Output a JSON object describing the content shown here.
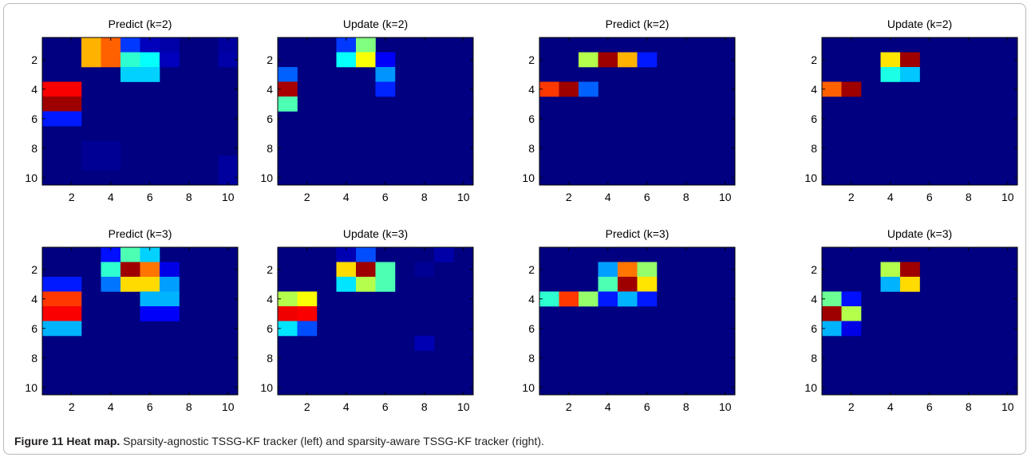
{
  "figure": {
    "caption_label": "Figure 11 Heat map.",
    "caption_text": "Sparsity-agnostic TSSG-KF tracker (left) and sparsity-aware TSSG-KF tracker (right)."
  },
  "chart_data": [
    {
      "type": "heatmap",
      "title": "Predict (k=2)",
      "x_ticks": [
        "2",
        "4",
        "6",
        "8",
        "10"
      ],
      "y_ticks": [
        "2",
        "4",
        "6",
        "8",
        "10"
      ],
      "xlim": [
        0.5,
        10.5
      ],
      "ylim": [
        0.5,
        10.5
      ],
      "colormap": "jet",
      "y_reversed": true,
      "cells": [
        {
          "x": 3,
          "y": 1,
          "v": 0.7
        },
        {
          "x": 4,
          "y": 1,
          "v": 0.78
        },
        {
          "x": 5,
          "y": 1,
          "v": 0.18
        },
        {
          "x": 6,
          "y": 1,
          "v": 0.06
        },
        {
          "x": 7,
          "y": 1,
          "v": 0.04
        },
        {
          "x": 10,
          "y": 1,
          "v": 0.03
        },
        {
          "x": 3,
          "y": 2,
          "v": 0.7
        },
        {
          "x": 4,
          "y": 2,
          "v": 0.78
        },
        {
          "x": 5,
          "y": 2,
          "v": 0.42
        },
        {
          "x": 6,
          "y": 2,
          "v": 0.38
        },
        {
          "x": 7,
          "y": 2,
          "v": 0.06
        },
        {
          "x": 10,
          "y": 2,
          "v": 0.04
        },
        {
          "x": 5,
          "y": 3,
          "v": 0.33
        },
        {
          "x": 6,
          "y": 3,
          "v": 0.33
        },
        {
          "x": 1,
          "y": 4,
          "v": 0.88
        },
        {
          "x": 2,
          "y": 4,
          "v": 0.88
        },
        {
          "x": 1,
          "y": 5,
          "v": 0.97
        },
        {
          "x": 2,
          "y": 5,
          "v": 0.97
        },
        {
          "x": 1,
          "y": 6,
          "v": 0.15
        },
        {
          "x": 2,
          "y": 6,
          "v": 0.15
        },
        {
          "x": 3,
          "y": 8,
          "v": 0.02
        },
        {
          "x": 4,
          "y": 8,
          "v": 0.02
        },
        {
          "x": 3,
          "y": 9,
          "v": 0.02
        },
        {
          "x": 4,
          "y": 9,
          "v": 0.02
        },
        {
          "x": 10,
          "y": 9,
          "v": 0.03
        },
        {
          "x": 10,
          "y": 10,
          "v": 0.03
        }
      ]
    },
    {
      "type": "heatmap",
      "title": "Update (k=2)",
      "x_ticks": [
        "2",
        "4",
        "6",
        "8",
        "10"
      ],
      "y_ticks": [
        "2",
        "4",
        "6",
        "8",
        "10"
      ],
      "xlim": [
        0.5,
        10.5
      ],
      "ylim": [
        0.5,
        10.5
      ],
      "colormap": "jet",
      "y_reversed": true,
      "cells": [
        {
          "x": 4,
          "y": 1,
          "v": 0.18
        },
        {
          "x": 5,
          "y": 1,
          "v": 0.5
        },
        {
          "x": 4,
          "y": 2,
          "v": 0.38
        },
        {
          "x": 5,
          "y": 2,
          "v": 0.62
        },
        {
          "x": 6,
          "y": 2,
          "v": 0.12
        },
        {
          "x": 1,
          "y": 3,
          "v": 0.22
        },
        {
          "x": 6,
          "y": 3,
          "v": 0.27
        },
        {
          "x": 1,
          "y": 4,
          "v": 0.96
        },
        {
          "x": 6,
          "y": 4,
          "v": 0.16
        },
        {
          "x": 1,
          "y": 5,
          "v": 0.45
        }
      ]
    },
    {
      "type": "heatmap",
      "title": "Predict (k=2)",
      "x_ticks": [
        "2",
        "4",
        "6",
        "8",
        "10"
      ],
      "y_ticks": [
        "2",
        "4",
        "6",
        "8",
        "10"
      ],
      "xlim": [
        0.5,
        10.5
      ],
      "ylim": [
        0.5,
        10.5
      ],
      "colormap": "jet",
      "y_reversed": true,
      "cells": [
        {
          "x": 3,
          "y": 2,
          "v": 0.55
        },
        {
          "x": 4,
          "y": 2,
          "v": 0.97
        },
        {
          "x": 5,
          "y": 2,
          "v": 0.7
        },
        {
          "x": 6,
          "y": 2,
          "v": 0.15
        },
        {
          "x": 1,
          "y": 4,
          "v": 0.82
        },
        {
          "x": 2,
          "y": 4,
          "v": 0.97
        },
        {
          "x": 3,
          "y": 4,
          "v": 0.22
        }
      ]
    },
    {
      "type": "heatmap",
      "title": "Update (k=2)",
      "x_ticks": [
        "2",
        "4",
        "6",
        "8",
        "10"
      ],
      "y_ticks": [
        "2",
        "4",
        "6",
        "8",
        "10"
      ],
      "xlim": [
        0.5,
        10.5
      ],
      "ylim": [
        0.5,
        10.5
      ],
      "colormap": "jet",
      "y_reversed": true,
      "cells": [
        {
          "x": 4,
          "y": 2,
          "v": 0.65
        },
        {
          "x": 5,
          "y": 2,
          "v": 0.97
        },
        {
          "x": 4,
          "y": 3,
          "v": 0.4
        },
        {
          "x": 5,
          "y": 3,
          "v": 0.32
        },
        {
          "x": 1,
          "y": 4,
          "v": 0.78
        },
        {
          "x": 2,
          "y": 4,
          "v": 0.97
        }
      ]
    },
    {
      "type": "heatmap",
      "title": "Predict (k=3)",
      "x_ticks": [
        "2",
        "4",
        "6",
        "8",
        "10"
      ],
      "y_ticks": [
        "2",
        "4",
        "6",
        "8",
        "10"
      ],
      "xlim": [
        0.5,
        10.5
      ],
      "ylim": [
        0.5,
        10.5
      ],
      "colormap": "jet",
      "y_reversed": true,
      "cells": [
        {
          "x": 4,
          "y": 1,
          "v": 0.14
        },
        {
          "x": 5,
          "y": 1,
          "v": 0.45
        },
        {
          "x": 6,
          "y": 1,
          "v": 0.33
        },
        {
          "x": 4,
          "y": 2,
          "v": 0.42
        },
        {
          "x": 5,
          "y": 2,
          "v": 0.97
        },
        {
          "x": 6,
          "y": 2,
          "v": 0.76
        },
        {
          "x": 7,
          "y": 2,
          "v": 0.1
        },
        {
          "x": 1,
          "y": 3,
          "v": 0.15
        },
        {
          "x": 2,
          "y": 3,
          "v": 0.15
        },
        {
          "x": 4,
          "y": 3,
          "v": 0.24
        },
        {
          "x": 5,
          "y": 3,
          "v": 0.66
        },
        {
          "x": 6,
          "y": 3,
          "v": 0.66
        },
        {
          "x": 7,
          "y": 3,
          "v": 0.28
        },
        {
          "x": 1,
          "y": 4,
          "v": 0.82
        },
        {
          "x": 2,
          "y": 4,
          "v": 0.82
        },
        {
          "x": 6,
          "y": 4,
          "v": 0.3
        },
        {
          "x": 7,
          "y": 4,
          "v": 0.3
        },
        {
          "x": 1,
          "y": 5,
          "v": 0.88
        },
        {
          "x": 2,
          "y": 5,
          "v": 0.88
        },
        {
          "x": 6,
          "y": 5,
          "v": 0.12
        },
        {
          "x": 7,
          "y": 5,
          "v": 0.12
        },
        {
          "x": 1,
          "y": 6,
          "v": 0.3
        },
        {
          "x": 2,
          "y": 6,
          "v": 0.3
        }
      ]
    },
    {
      "type": "heatmap",
      "title": "Update (k=3)",
      "x_ticks": [
        "2",
        "4",
        "6",
        "8",
        "10"
      ],
      "y_ticks": [
        "2",
        "4",
        "6",
        "8",
        "10"
      ],
      "xlim": [
        0.5,
        10.5
      ],
      "ylim": [
        0.5,
        10.5
      ],
      "colormap": "jet",
      "y_reversed": true,
      "cells": [
        {
          "x": 4,
          "y": 1,
          "v": 0.05
        },
        {
          "x": 5,
          "y": 1,
          "v": 0.2
        },
        {
          "x": 9,
          "y": 1,
          "v": 0.04
        },
        {
          "x": 4,
          "y": 2,
          "v": 0.66
        },
        {
          "x": 5,
          "y": 2,
          "v": 0.97
        },
        {
          "x": 6,
          "y": 2,
          "v": 0.45
        },
        {
          "x": 8,
          "y": 2,
          "v": 0.02
        },
        {
          "x": 4,
          "y": 3,
          "v": 0.35
        },
        {
          "x": 5,
          "y": 3,
          "v": 0.55
        },
        {
          "x": 6,
          "y": 3,
          "v": 0.45
        },
        {
          "x": 1,
          "y": 4,
          "v": 0.55
        },
        {
          "x": 2,
          "y": 4,
          "v": 0.62
        },
        {
          "x": 1,
          "y": 5,
          "v": 0.89
        },
        {
          "x": 2,
          "y": 5,
          "v": 0.88
        },
        {
          "x": 1,
          "y": 6,
          "v": 0.35
        },
        {
          "x": 2,
          "y": 6,
          "v": 0.2
        },
        {
          "x": 8,
          "y": 7,
          "v": 0.05
        }
      ]
    },
    {
      "type": "heatmap",
      "title": "Predict (k=3)",
      "x_ticks": [
        "2",
        "4",
        "6",
        "8",
        "10"
      ],
      "y_ticks": [
        "2",
        "4",
        "6",
        "8",
        "10"
      ],
      "xlim": [
        0.5,
        10.5
      ],
      "ylim": [
        0.5,
        10.5
      ],
      "colormap": "jet",
      "y_reversed": true,
      "cells": [
        {
          "x": 4,
          "y": 2,
          "v": 0.28
        },
        {
          "x": 5,
          "y": 2,
          "v": 0.76
        },
        {
          "x": 6,
          "y": 2,
          "v": 0.52
        },
        {
          "x": 4,
          "y": 3,
          "v": 0.45
        },
        {
          "x": 5,
          "y": 3,
          "v": 0.97
        },
        {
          "x": 6,
          "y": 3,
          "v": 0.65
        },
        {
          "x": 1,
          "y": 4,
          "v": 0.42
        },
        {
          "x": 2,
          "y": 4,
          "v": 0.82
        },
        {
          "x": 3,
          "y": 4,
          "v": 0.52
        },
        {
          "x": 4,
          "y": 4,
          "v": 0.15
        },
        {
          "x": 5,
          "y": 4,
          "v": 0.3
        },
        {
          "x": 6,
          "y": 4,
          "v": 0.15
        }
      ]
    },
    {
      "type": "heatmap",
      "title": "Update (k=3)",
      "x_ticks": [
        "2",
        "4",
        "6",
        "8",
        "10"
      ],
      "y_ticks": [
        "2",
        "4",
        "6",
        "8",
        "10"
      ],
      "xlim": [
        0.5,
        10.5
      ],
      "ylim": [
        0.5,
        10.5
      ],
      "colormap": "jet",
      "y_reversed": true,
      "cells": [
        {
          "x": 4,
          "y": 2,
          "v": 0.55
        },
        {
          "x": 5,
          "y": 2,
          "v": 0.97
        },
        {
          "x": 4,
          "y": 3,
          "v": 0.3
        },
        {
          "x": 5,
          "y": 3,
          "v": 0.66
        },
        {
          "x": 1,
          "y": 4,
          "v": 0.48
        },
        {
          "x": 2,
          "y": 4,
          "v": 0.14
        },
        {
          "x": 1,
          "y": 5,
          "v": 0.97
        },
        {
          "x": 2,
          "y": 5,
          "v": 0.55
        },
        {
          "x": 1,
          "y": 6,
          "v": 0.3
        },
        {
          "x": 2,
          "y": 6,
          "v": 0.1
        }
      ]
    }
  ]
}
